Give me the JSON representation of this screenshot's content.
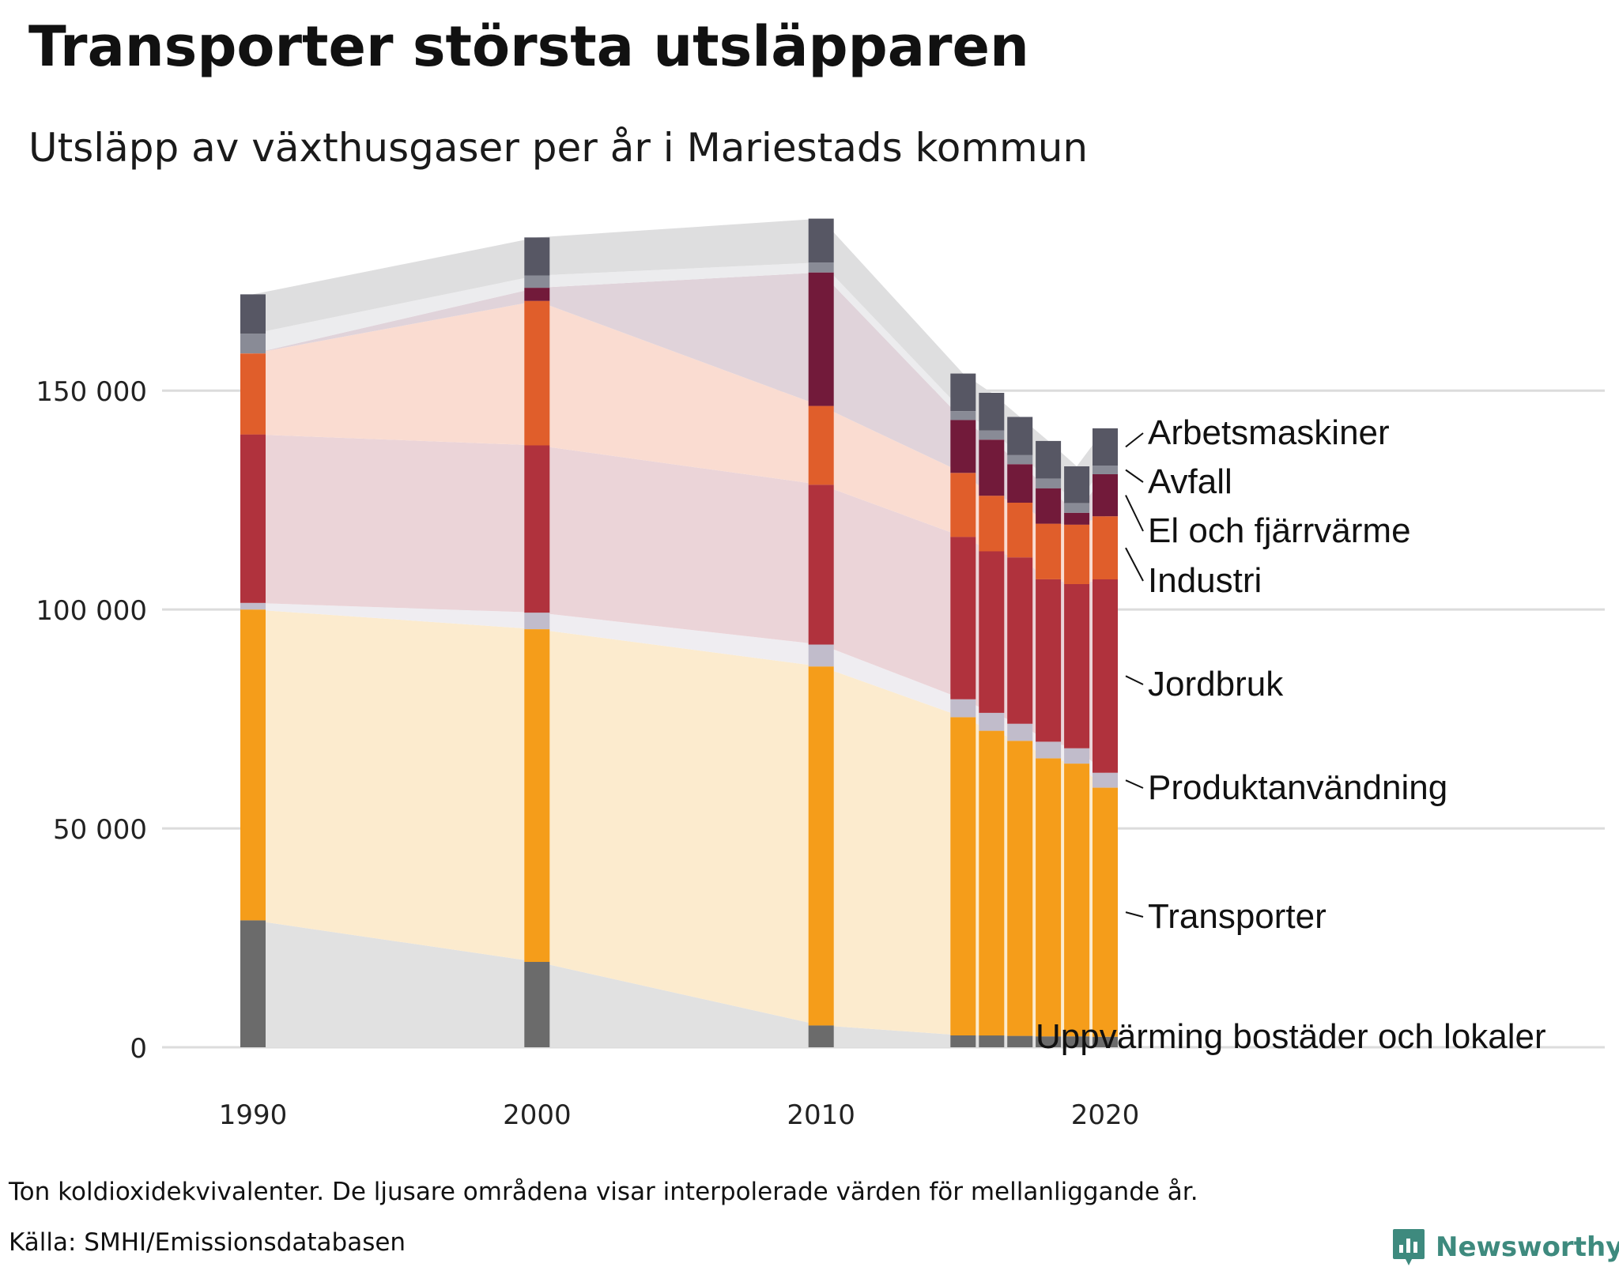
{
  "title": "Transporter största utsläpparen",
  "subtitle": "Utsläpp av växthusgaser per år i Mariestads kommun",
  "footnote": "Ton koldioxidekvivalenter. De ljusare områdena visar interpolerade värden för mellanliggande år.",
  "source": "Källa: SMHI/Emissionsdatabasen",
  "brand": "Newsworthy",
  "chart_data": {
    "type": "bar",
    "stacked": true,
    "interpolated_areas": true,
    "x": [
      1990,
      2000,
      2010,
      2015,
      2016,
      2017,
      2018,
      2019,
      2020
    ],
    "x_ticks": [
      1990,
      2000,
      2010,
      2020
    ],
    "x_tick_labels": [
      "1990",
      "2000",
      "2010",
      "2020"
    ],
    "y_ticks": [
      0,
      50000,
      100000,
      150000
    ],
    "y_tick_labels": [
      "0",
      "50 000",
      "100 000",
      "150 000"
    ],
    "ylim": [
      0,
      195000
    ],
    "grid": true,
    "series": [
      {
        "name": "Uppvärming bostäder och lokaler",
        "color": "#6b6b6b",
        "area_color": "#e1e1e1",
        "values": [
          29000,
          19500,
          5000,
          2700,
          2700,
          2600,
          2500,
          2500,
          2400
        ]
      },
      {
        "name": "Transporter",
        "color": "#f59d1a",
        "area_color": "#fcebce",
        "values": [
          71000,
          76000,
          82000,
          72700,
          69600,
          67400,
          63500,
          62300,
          56900
        ]
      },
      {
        "name": "Produktanvändning",
        "color": "#c1bccb",
        "area_color": "#efedf1",
        "values": [
          1500,
          3800,
          5000,
          4100,
          4100,
          3900,
          3800,
          3500,
          3400
        ]
      },
      {
        "name": "Jordbruk",
        "color": "#b0323d",
        "area_color": "#ebd4d8",
        "values": [
          38500,
          38200,
          36500,
          37100,
          36900,
          38000,
          37100,
          37500,
          44200
        ]
      },
      {
        "name": "Industri",
        "color": "#e05e2b",
        "area_color": "#fadcd1",
        "values": [
          18500,
          33000,
          18000,
          14600,
          12700,
          12500,
          12700,
          13600,
          14400
        ]
      },
      {
        "name": "El och fjärrvärme",
        "color": "#721a3a",
        "area_color": "#e0d3da",
        "values": [
          0,
          3000,
          30500,
          12100,
          12800,
          8800,
          8100,
          2700,
          9600
        ]
      },
      {
        "name": "Avfall",
        "color": "#898b96",
        "area_color": "#ececee",
        "values": [
          4500,
          2800,
          2300,
          2000,
          2100,
          2100,
          2200,
          2200,
          2000
        ]
      },
      {
        "name": "Arbetsmaskiner",
        "color": "#575764",
        "area_color": "#dededf",
        "values": [
          9000,
          8700,
          10000,
          8600,
          8600,
          8700,
          8600,
          8400,
          8500
        ]
      }
    ],
    "legend": "right, labels beside 2020 segments"
  }
}
